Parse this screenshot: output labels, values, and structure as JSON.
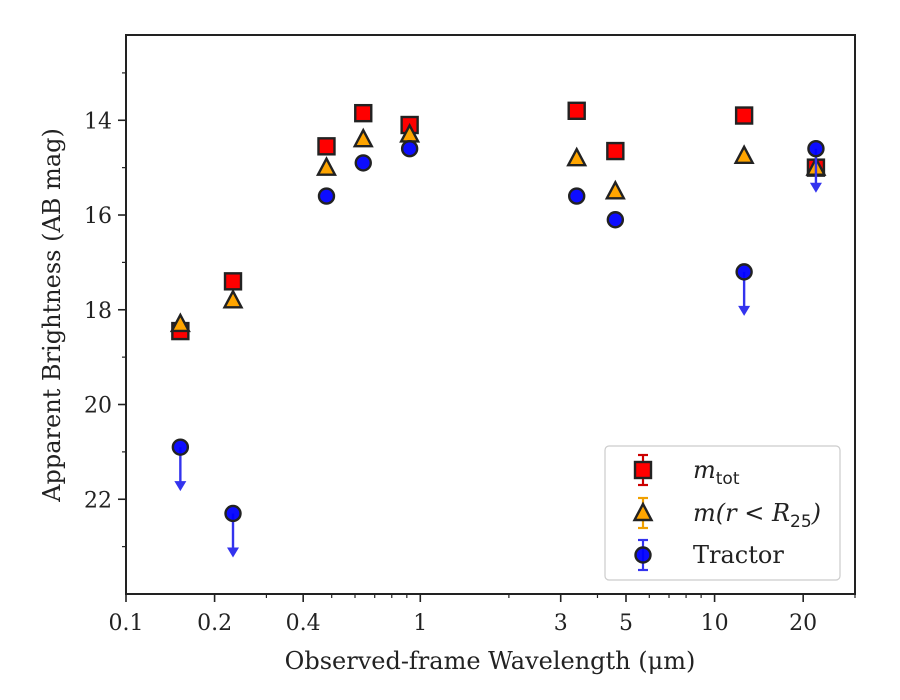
{
  "chart_data": {
    "type": "scatter",
    "xlabel": "Observed-frame Wavelength (μm)",
    "ylabel": "Apparent Brightness (AB mag)",
    "xscale": "log",
    "xlim": [
      0.1,
      30
    ],
    "ylim": [
      24.0,
      12.2
    ],
    "y_inverted": true,
    "x_ticks": [
      0.1,
      0.2,
      0.4,
      1,
      3,
      5,
      10,
      20
    ],
    "x_tick_labels": [
      "0.1",
      "0.2",
      "0.4",
      "1",
      "3",
      "5",
      "10",
      "20"
    ],
    "y_ticks": [
      14,
      16,
      18,
      20,
      22
    ],
    "y_tick_labels": [
      "14",
      "16",
      "18",
      "20",
      "22"
    ],
    "grid": false,
    "legend_position": "lower-right",
    "series": [
      {
        "name": "m_tot",
        "marker": "square",
        "color": "#ff0000",
        "edge_color": "#222222",
        "points": [
          {
            "x": 0.153,
            "y": 18.45
          },
          {
            "x": 0.231,
            "y": 17.4
          },
          {
            "x": 0.48,
            "y": 14.55
          },
          {
            "x": 0.64,
            "y": 13.85
          },
          {
            "x": 0.92,
            "y": 14.1
          },
          {
            "x": 3.4,
            "y": 13.8
          },
          {
            "x": 4.6,
            "y": 14.65
          },
          {
            "x": 12.6,
            "y": 13.9
          },
          {
            "x": 22.1,
            "y": 15.0
          }
        ]
      },
      {
        "name": "m(r<R25)",
        "marker": "triangle",
        "color": "#ffa500",
        "edge_color": "#222222",
        "points": [
          {
            "x": 0.153,
            "y": 18.3
          },
          {
            "x": 0.231,
            "y": 17.8
          },
          {
            "x": 0.48,
            "y": 15.0
          },
          {
            "x": 0.64,
            "y": 14.4
          },
          {
            "x": 0.92,
            "y": 14.3
          },
          {
            "x": 3.4,
            "y": 14.8
          },
          {
            "x": 4.6,
            "y": 15.5
          },
          {
            "x": 12.6,
            "y": 14.75
          },
          {
            "x": 22.1,
            "y": 15.0
          }
        ]
      },
      {
        "name": "Tractor",
        "marker": "circle",
        "color": "#0000ff",
        "edge_color": "#222222",
        "arrow_color": "#3333ee",
        "points": [
          {
            "x": 0.153,
            "y": 20.9,
            "upper_limit": true
          },
          {
            "x": 0.231,
            "y": 22.3,
            "upper_limit": true
          },
          {
            "x": 0.48,
            "y": 15.6
          },
          {
            "x": 0.64,
            "y": 14.9
          },
          {
            "x": 0.92,
            "y": 14.6
          },
          {
            "x": 3.4,
            "y": 15.6
          },
          {
            "x": 4.6,
            "y": 16.1
          },
          {
            "x": 12.6,
            "y": 17.2,
            "upper_limit": true
          },
          {
            "x": 22.1,
            "y": 14.6,
            "upper_limit": true
          }
        ]
      }
    ],
    "legend": [
      {
        "label_main": "m",
        "label_sub": "tot",
        "label_suffix": ""
      },
      {
        "label_main": "m(r < R",
        "label_sub": "25",
        "label_suffix": ")"
      },
      {
        "label_main": "Tractor",
        "label_sub": "",
        "label_suffix": ""
      }
    ]
  }
}
